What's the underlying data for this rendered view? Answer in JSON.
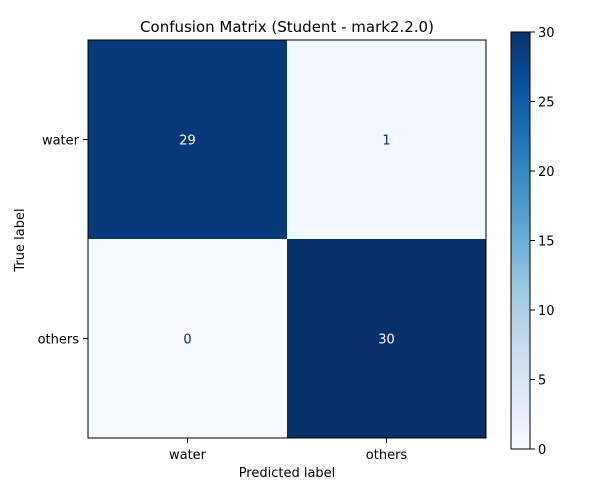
{
  "chart_data": {
    "type": "heatmap",
    "title": "Confusion Matrix (Student - mark2.2.0)",
    "xlabel": "Predicted label",
    "ylabel": "True label",
    "x_categories": [
      "water",
      "others"
    ],
    "y_categories": [
      "water",
      "others"
    ],
    "values": [
      [
        29,
        1
      ],
      [
        0,
        30
      ]
    ],
    "colorbar": {
      "range": [
        0,
        30
      ],
      "ticks": [
        0,
        5,
        10,
        15,
        20,
        25,
        30
      ],
      "colormap": "Blues",
      "colors": [
        "#f7fbff",
        "#deebf7",
        "#c6dbef",
        "#9ecae1",
        "#6baed6",
        "#4292c6",
        "#2171b5",
        "#08519c",
        "#08306b"
      ]
    },
    "cell_text_colors": {
      "light": "#ffffff",
      "dark": "#08306b"
    }
  }
}
